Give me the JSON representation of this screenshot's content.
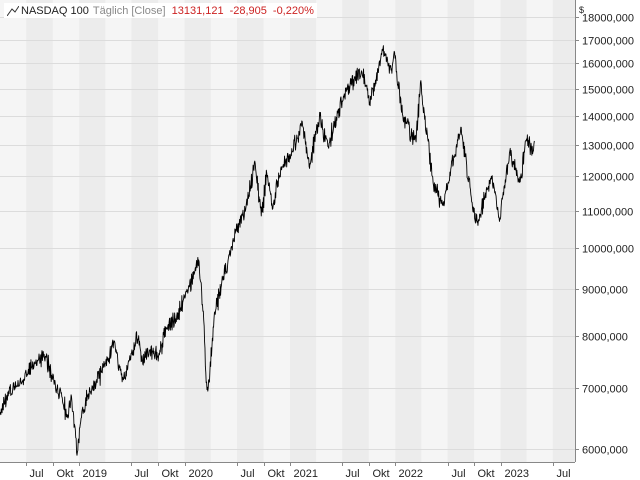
{
  "legend": {
    "symbol": "NASDAQ 100",
    "interval": "Täglich",
    "price_type": "[Close]",
    "last": "13131,121",
    "change": "-28,905",
    "change_pct": "-0,220%",
    "change_color": "#cc2222"
  },
  "currency": "$",
  "chart_data": {
    "type": "line",
    "title": "NASDAQ 100",
    "y_scale": "log",
    "ylim": [
      5800,
      18800
    ],
    "grid": true,
    "line_color": "#000000",
    "y_ticks": [
      {
        "value": 6000,
        "label": "6000,000"
      },
      {
        "value": 7000,
        "label": "7000,000"
      },
      {
        "value": 8000,
        "label": "8000,000"
      },
      {
        "value": 9000,
        "label": "9000,000"
      },
      {
        "value": 10000,
        "label": "10000,000"
      },
      {
        "value": 11000,
        "label": "11000,000"
      },
      {
        "value": 12000,
        "label": "12000,000"
      },
      {
        "value": 13000,
        "label": "13000,000"
      },
      {
        "value": 14000,
        "label": "14000,000"
      },
      {
        "value": 15000,
        "label": "15000,000"
      },
      {
        "value": 16000,
        "label": "16000,000"
      },
      {
        "value": 17000,
        "label": "17000,000"
      },
      {
        "value": 18000,
        "label": "18000,000"
      }
    ],
    "x_ticks": [
      {
        "date": "2018-07",
        "label": "Jul"
      },
      {
        "date": "2018-10",
        "label": "Okt"
      },
      {
        "date": "2019-01",
        "label": "2019"
      },
      {
        "date": "2019-07",
        "label": "Jul"
      },
      {
        "date": "2019-10",
        "label": "Okt"
      },
      {
        "date": "2020-01",
        "label": "2020"
      },
      {
        "date": "2020-07",
        "label": "Jul"
      },
      {
        "date": "2020-10",
        "label": "Okt"
      },
      {
        "date": "2021-01",
        "label": "2021"
      },
      {
        "date": "2021-07",
        "label": "Jul"
      },
      {
        "date": "2021-10",
        "label": "Okt"
      },
      {
        "date": "2022-01",
        "label": "2022"
      },
      {
        "date": "2022-07",
        "label": "Jul"
      },
      {
        "date": "2022-10",
        "label": "Okt"
      },
      {
        "date": "2023-01",
        "label": "2023"
      },
      {
        "date": "2023-07",
        "label": "Jul"
      }
    ],
    "series": [
      {
        "values": [
          [
            "2018-04",
            6550
          ],
          [
            "2018-05",
            6950
          ],
          [
            "2018-06",
            7040
          ],
          [
            "2018-07",
            7270
          ],
          [
            "2018-08",
            7450
          ],
          [
            "2018-09",
            7630
          ],
          [
            "2018-10-10",
            7050
          ],
          [
            "2018-10-31",
            6920
          ],
          [
            "2018-11-20",
            6500
          ],
          [
            "2018-12-05",
            6850
          ],
          [
            "2018-12-24",
            5900
          ],
          [
            "2019-01-10",
            6600
          ],
          [
            "2019-02-01",
            6900
          ],
          [
            "2019-03-01",
            7100
          ],
          [
            "2019-04-01",
            7450
          ],
          [
            "2019-04-30",
            7850
          ],
          [
            "2019-06-03",
            7150
          ],
          [
            "2019-07-01",
            7650
          ],
          [
            "2019-07-26",
            8000
          ],
          [
            "2019-08-05",
            7500
          ],
          [
            "2019-09-01",
            7700
          ],
          [
            "2019-10-03",
            7600
          ],
          [
            "2019-11-01",
            8150
          ],
          [
            "2019-12-02",
            8350
          ],
          [
            "2020-01-02",
            8800
          ],
          [
            "2020-02-19",
            9700
          ],
          [
            "2020-03-09",
            8200
          ],
          [
            "2020-03-16",
            7100
          ],
          [
            "2020-03-23",
            7000
          ],
          [
            "2020-04-15",
            8500
          ],
          [
            "2020-05-15",
            9300
          ],
          [
            "2020-06-10",
            10000
          ],
          [
            "2020-07-01",
            10500
          ],
          [
            "2020-08-01",
            11100
          ],
          [
            "2020-09-02",
            12400
          ],
          [
            "2020-09-23",
            10850
          ],
          [
            "2020-10-12",
            12100
          ],
          [
            "2020-11-02",
            11050
          ],
          [
            "2020-12-01",
            12300
          ],
          [
            "2021-01-04",
            12700
          ],
          [
            "2021-02-12",
            13800
          ],
          [
            "2021-03-08",
            12300
          ],
          [
            "2021-04-15",
            14000
          ],
          [
            "2021-05-12",
            12950
          ],
          [
            "2021-06-15",
            14100
          ],
          [
            "2021-07-15",
            14900
          ],
          [
            "2021-09-07",
            15650
          ],
          [
            "2021-10-04",
            14500
          ],
          [
            "2021-11-19",
            16600
          ],
          [
            "2021-12-20",
            15600
          ],
          [
            "2021-12-28",
            16500
          ],
          [
            "2022-01-27",
            14000
          ],
          [
            "2022-03-14",
            13100
          ],
          [
            "2022-03-29",
            15250
          ],
          [
            "2022-05-12",
            11800
          ],
          [
            "2022-06-16",
            11150
          ],
          [
            "2022-08-16",
            13600
          ],
          [
            "2022-09-30",
            10950
          ],
          [
            "2022-10-13",
            10700
          ],
          [
            "2022-11-30",
            12000
          ],
          [
            "2022-12-28",
            10700
          ],
          [
            "2023-02-02",
            12800
          ],
          [
            "2023-03-10",
            11830
          ],
          [
            "2023-04-01",
            13200
          ],
          [
            "2023-04-25",
            12800
          ],
          [
            "2023-04-28",
            13131
          ]
        ]
      }
    ]
  }
}
